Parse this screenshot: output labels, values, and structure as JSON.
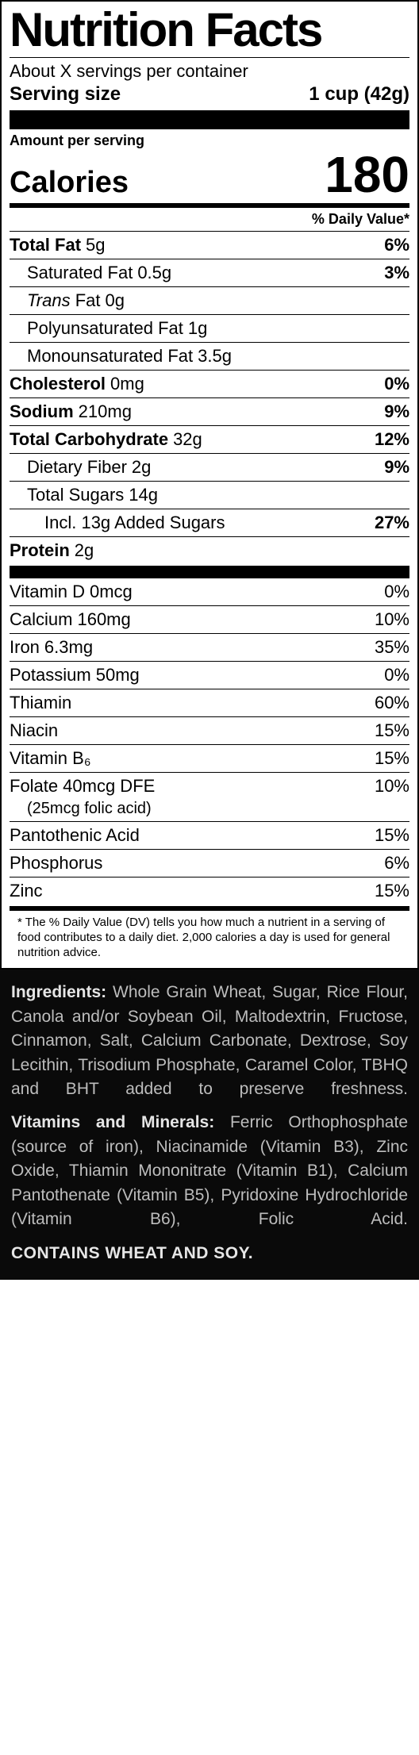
{
  "header": {
    "title": "Nutrition Facts",
    "servings_per_container": "About X servings per container",
    "serving_size_label": "Serving size",
    "serving_size_value": "1 cup (42g)",
    "amount_per_serving": "Amount per serving",
    "calories_label": "Calories",
    "calories_value": "180",
    "dv_header": "% Daily Value*"
  },
  "nutrients_top": [
    {
      "name": "Total Fat",
      "amount": "5g",
      "pct": "6%",
      "bold": true,
      "indent": 0
    },
    {
      "name": "Saturated Fat",
      "amount": "0.5g",
      "pct": "3%",
      "bold": false,
      "indent": 1
    },
    {
      "name_html": "Trans Fat",
      "name_prefix_italic": "Trans",
      "name_suffix": " Fat",
      "amount": "0g",
      "pct": "",
      "bold": false,
      "indent": 1
    },
    {
      "name": "Polyunsaturated Fat",
      "amount": "1g",
      "pct": "",
      "bold": false,
      "indent": 1
    },
    {
      "name": "Monounsaturated Fat",
      "amount": "3.5g",
      "pct": "",
      "bold": false,
      "indent": 1
    },
    {
      "name": "Cholesterol",
      "amount": "0mg",
      "pct": "0%",
      "bold": true,
      "indent": 0
    },
    {
      "name": "Sodium",
      "amount": "210mg",
      "pct": "9%",
      "bold": true,
      "indent": 0
    },
    {
      "name": "Total Carbohydrate",
      "amount": "32g",
      "pct": "12%",
      "bold": true,
      "indent": 0
    },
    {
      "name": "Dietary Fiber",
      "amount": "2g",
      "pct": "9%",
      "bold": false,
      "indent": 1
    },
    {
      "name": "Total Sugars",
      "amount": "14g",
      "pct": "",
      "bold": false,
      "indent": 1
    },
    {
      "name": "Incl. 13g Added Sugars",
      "amount": "",
      "pct": "27%",
      "bold": false,
      "indent": 2
    },
    {
      "name": "Protein",
      "amount": "2g",
      "pct": "",
      "bold": true,
      "indent": 0
    }
  ],
  "nutrients_bottom": [
    {
      "name": "Vitamin D",
      "amount": "0mcg",
      "pct": "0%"
    },
    {
      "name": "Calcium",
      "amount": "160mg",
      "pct": "10%"
    },
    {
      "name": "Iron",
      "amount": "6.3mg",
      "pct": "35%"
    },
    {
      "name": "Potassium",
      "amount": "50mg",
      "pct": "0%"
    },
    {
      "name": "Thiamin",
      "amount": "",
      "pct": "60%"
    },
    {
      "name": "Niacin",
      "amount": "",
      "pct": "15%"
    },
    {
      "name": "Vitamin B₆",
      "amount": "",
      "pct": "15%"
    },
    {
      "name": "Folate",
      "amount": "40mcg DFE",
      "pct": "10%",
      "sub": "(25mcg folic acid)"
    },
    {
      "name": "Pantothenic Acid",
      "amount": "",
      "pct": "15%"
    },
    {
      "name": "Phosphorus",
      "amount": "",
      "pct": "6%"
    },
    {
      "name": "Zinc",
      "amount": "",
      "pct": "15%"
    }
  ],
  "footnote": "* The % Daily Value (DV) tells you how much a nutrient in a serving of food contributes to a daily diet. 2,000 calories a day is used for general nutrition advice.",
  "ingredients": {
    "lead1": "Ingredients:",
    "body1": " Whole Grain Wheat, Sugar, Rice Flour, Canola and/or Soybean Oil, Maltodextrin, Fructose, Cinnamon, Salt, Calcium Carbonate, Dextrose, Soy Lecithin, Trisodium Phosphate, Caramel Color, TBHQ and BHT added to preserve freshness.",
    "lead2": "Vitamins and Minerals:",
    "body2": " Ferric Orthophosphate (source of iron), Niacinamide (Vitamin B3), Zinc Oxide, Thiamin Mononitrate (Vitamin B1), Calcium Pantothenate (Vitamin B5), Pyridoxine Hydrochloride (Vitamin B6), Folic Acid.",
    "allergen": "CONTAINS WHEAT AND SOY."
  },
  "style": {
    "panel_border_color": "#000000",
    "text_color": "#000000",
    "ingredients_bg": "#0a0a0a",
    "ingredients_fg": "#bdbdbd",
    "ingredients_lead_fg": "#e6e6e6"
  }
}
